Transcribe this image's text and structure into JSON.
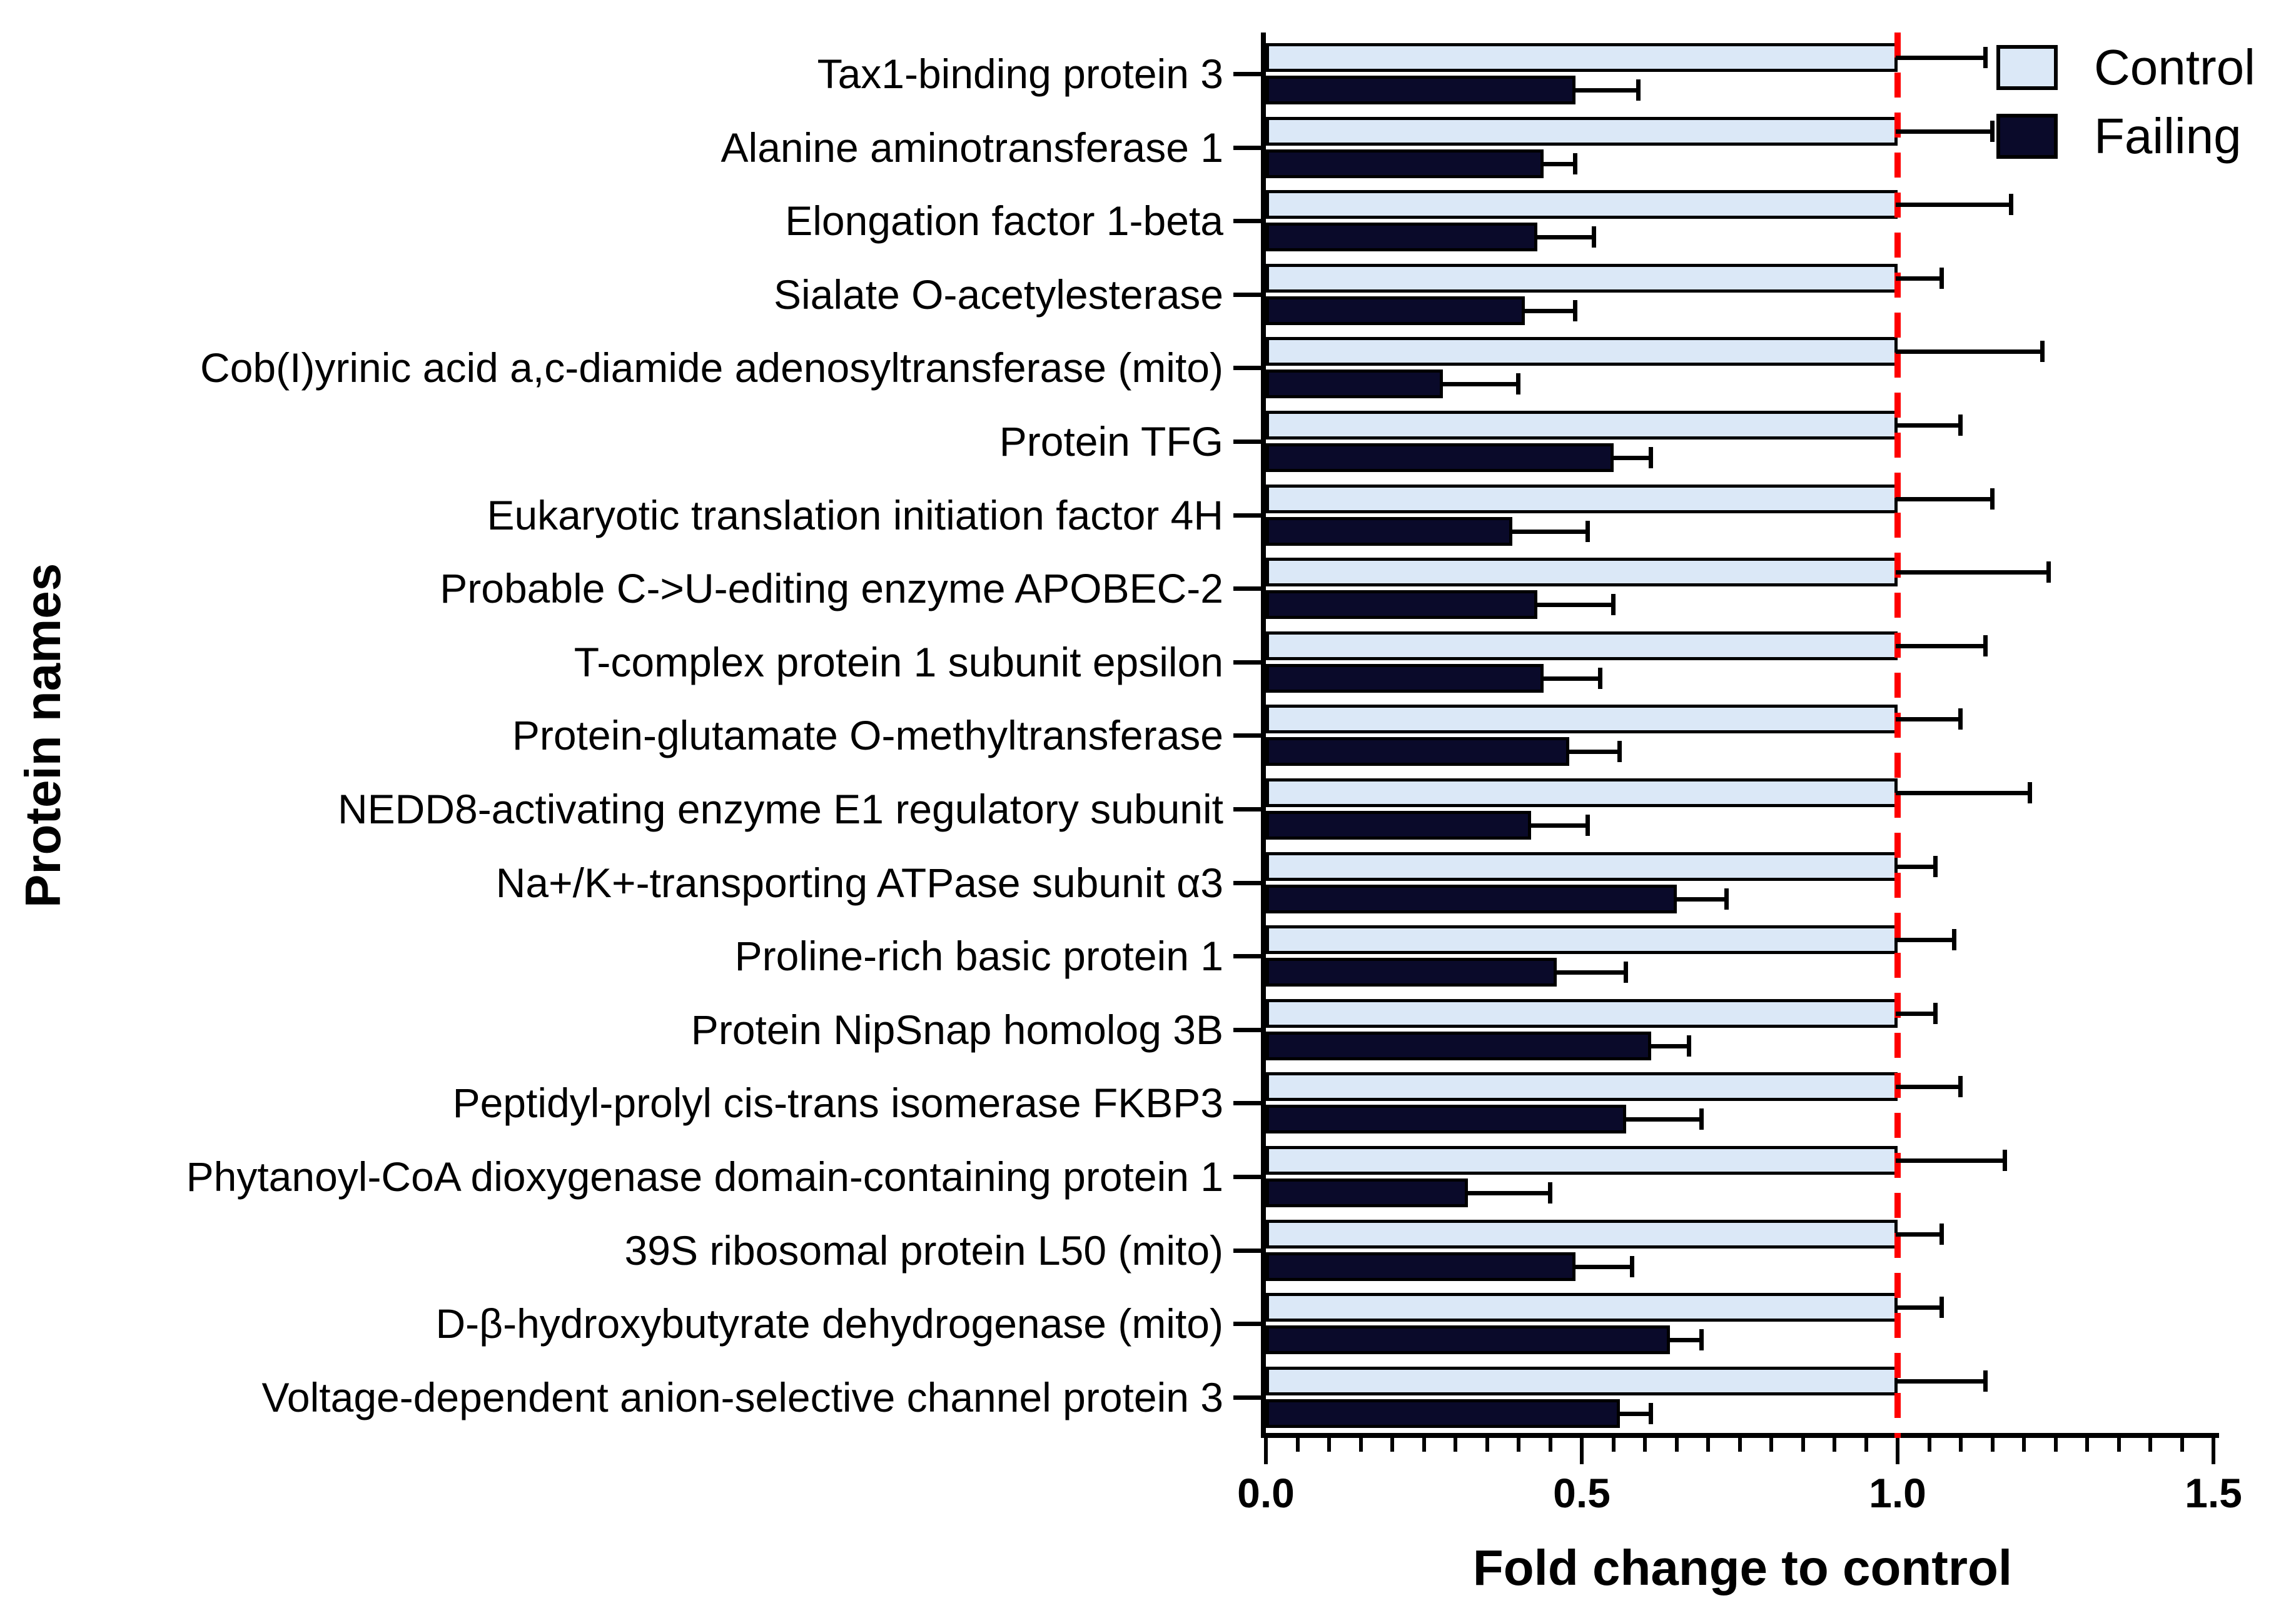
{
  "figure": {
    "background": "#ffffff",
    "y_axis_title": "Protein names",
    "x_axis_title": "Fold change to control",
    "legend": {
      "control_label": "Control",
      "failing_label": "Failing"
    },
    "colors": {
      "control_fill": "#dbe8f7",
      "failing_fill": "#0a0a2a",
      "bar_border": "#000000",
      "error_bar": "#000000",
      "reference_line": "#ff0000",
      "axis": "#000000"
    }
  },
  "chart_data": {
    "type": "bar",
    "orientation": "horizontal",
    "title": "",
    "xlabel": "Fold change to control",
    "ylabel": "Protein names",
    "xlim": [
      0,
      1.5
    ],
    "x_ticks": [
      0.0,
      0.5,
      1.0,
      1.5
    ],
    "x_tick_labels": [
      "0.0",
      "0.5",
      "1.0",
      "1.5"
    ],
    "minor_tick_step": 0.05,
    "grid": false,
    "reference_line_x": 1.0,
    "legend_position": "top-right",
    "categories": [
      "Tax1-binding protein 3",
      "Alanine aminotransferase 1",
      "Elongation factor 1-beta",
      "Sialate O-acetylesterase",
      "Cob(I)yrinic acid a,c-diamide adenosyltransferase (mito)",
      "Protein TFG",
      "Eukaryotic translation initiation factor 4H",
      "Probable C->U-editing enzyme APOBEC-2",
      "T-complex protein 1 subunit epsilon",
      "Protein-glutamate O-methyltransferase",
      "NEDD8-activating enzyme E1 regulatory subunit",
      "Na+/K+-transporting ATPase subunit α3",
      "Proline-rich basic protein 1",
      "Protein NipSnap homolog 3B",
      "Peptidyl-prolyl cis-trans isomerase FKBP3",
      "Phytanoyl-CoA dioxygenase domain-containing protein 1",
      "39S ribosomal protein L50 (mito)",
      "D-β-hydroxybutyrate dehydrogenase (mito)",
      "Voltage-dependent anion-selective channel protein 3"
    ],
    "series": [
      {
        "name": "Control",
        "color": "#dbe8f7",
        "values": [
          1.0,
          1.0,
          1.0,
          1.0,
          1.0,
          1.0,
          1.0,
          1.0,
          1.0,
          1.0,
          1.0,
          1.0,
          1.0,
          1.0,
          1.0,
          1.0,
          1.0,
          1.0,
          1.0
        ],
        "errors_plus": [
          0.14,
          0.15,
          0.18,
          0.07,
          0.23,
          0.1,
          0.15,
          0.24,
          0.14,
          0.1,
          0.21,
          0.06,
          0.09,
          0.06,
          0.1,
          0.17,
          0.07,
          0.07,
          0.14
        ]
      },
      {
        "name": "Failing",
        "color": "#0a0a2a",
        "values": [
          0.49,
          0.44,
          0.43,
          0.41,
          0.28,
          0.55,
          0.39,
          0.43,
          0.44,
          0.48,
          0.42,
          0.65,
          0.46,
          0.61,
          0.57,
          0.32,
          0.49,
          0.64,
          0.56
        ],
        "errors_plus": [
          0.1,
          0.05,
          0.09,
          0.08,
          0.12,
          0.06,
          0.12,
          0.12,
          0.09,
          0.08,
          0.09,
          0.08,
          0.11,
          0.06,
          0.12,
          0.13,
          0.09,
          0.05,
          0.05
        ]
      }
    ]
  }
}
